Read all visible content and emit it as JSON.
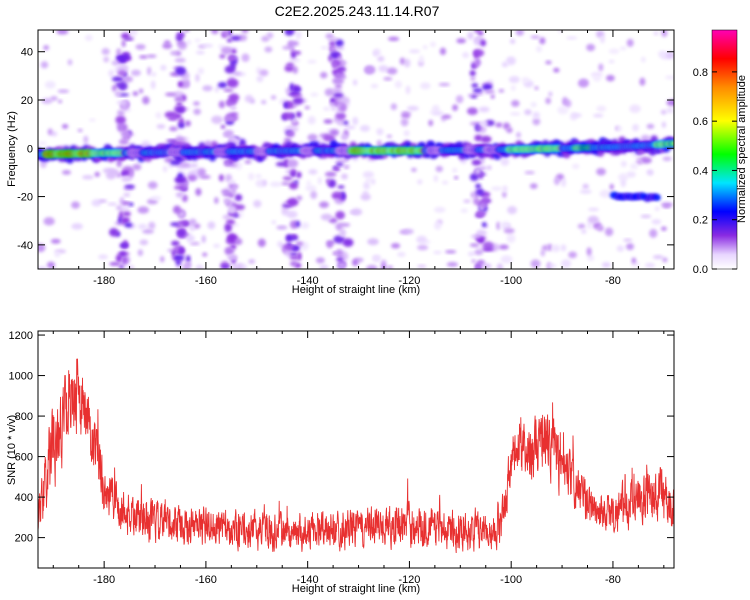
{
  "title": "C2E2.2025.243.11.14.R07",
  "chart_data": [
    {
      "type": "heatmap",
      "xlabel": "Height of straight line (km)",
      "ylabel": "Frequency (Hz)",
      "xlim": [
        -193,
        -68
      ],
      "ylim": [
        -50,
        49
      ],
      "xticks": [
        -180,
        -160,
        -140,
        -120,
        -100,
        -80
      ],
      "yticks": [
        -40,
        -20,
        0,
        20,
        40
      ],
      "colorbar": {
        "label": "Normalized spectral amplitude",
        "range": [
          0.0,
          0.97
        ],
        "ticks": [
          0.0,
          0.2,
          0.4,
          0.6,
          0.8
        ]
      },
      "ridge": {
        "description_points_x": [
          -193,
          -180,
          -160,
          -140,
          -120,
          -100,
          -90,
          -80,
          -75,
          -68
        ],
        "description_points_freq": [
          -2.5,
          -2,
          -1.5,
          -1,
          -1,
          -0.5,
          0,
          0.5,
          1,
          2
        ]
      },
      "vertical_streak_centers_km": [
        -176,
        -165,
        -155,
        -143,
        -134,
        -106
      ],
      "secondary_feature": {
        "x_range": [
          -80,
          -71
        ],
        "freq": -20
      }
    },
    {
      "type": "line",
      "xlabel": "Height of straight line (km)",
      "ylabel": "SNR (10 * v/v)",
      "xlim": [
        -193,
        -68
      ],
      "ylim": [
        50,
        1220
      ],
      "xticks": [
        -180,
        -160,
        -140,
        -120,
        -100,
        -80
      ],
      "yticks": [
        200,
        400,
        600,
        800,
        1000,
        1200
      ],
      "color": "#e83030",
      "envelope_x": [
        -193,
        -190,
        -187,
        -185,
        -182,
        -180,
        -177,
        -172,
        -165,
        -155,
        -145,
        -140,
        -130,
        -120,
        -110,
        -105,
        -102,
        -100,
        -97,
        -93,
        -90,
        -87,
        -84,
        -80,
        -77,
        -72,
        -68
      ],
      "envelope_mean": [
        280,
        650,
        850,
        900,
        620,
        450,
        340,
        280,
        260,
        240,
        230,
        230,
        250,
        270,
        240,
        230,
        260,
        580,
        620,
        680,
        540,
        420,
        340,
        330,
        360,
        420,
        350
      ],
      "envelope_amp": [
        150,
        260,
        280,
        260,
        230,
        200,
        170,
        150,
        140,
        130,
        130,
        130,
        140,
        150,
        140,
        130,
        140,
        190,
        200,
        230,
        200,
        170,
        150,
        150,
        160,
        190,
        170
      ]
    }
  ]
}
